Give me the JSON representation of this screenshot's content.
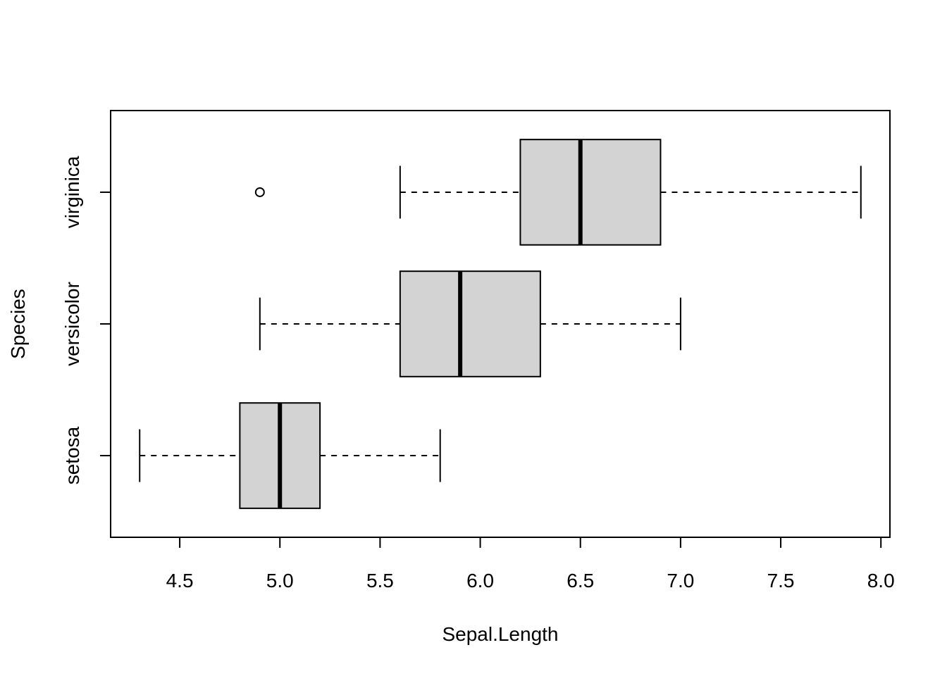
{
  "chart_data": {
    "type": "boxplot",
    "orientation": "horizontal",
    "xlabel": "Sepal.Length",
    "ylabel": "Species",
    "xlim": [
      4.155,
      8.045
    ],
    "xticks": [
      "4.5",
      "5.0",
      "5.5",
      "6.0",
      "6.5",
      "7.0",
      "7.5",
      "8.0"
    ],
    "categories": [
      "setosa",
      "versicolor",
      "virginica"
    ],
    "box_fill": "#d3d3d3",
    "line_color": "#000000",
    "grid": false,
    "series": [
      {
        "category": "setosa",
        "whisker_low": 4.3,
        "q1": 4.8,
        "median": 5.0,
        "q3": 5.2,
        "whisker_high": 5.8,
        "outliers": []
      },
      {
        "category": "versicolor",
        "whisker_low": 4.9,
        "q1": 5.6,
        "median": 5.9,
        "q3": 6.3,
        "whisker_high": 7.0,
        "outliers": []
      },
      {
        "category": "virginica",
        "whisker_low": 5.6,
        "q1": 6.2,
        "median": 6.5,
        "q3": 6.9,
        "whisker_high": 7.9,
        "outliers": [
          4.9
        ]
      }
    ]
  }
}
